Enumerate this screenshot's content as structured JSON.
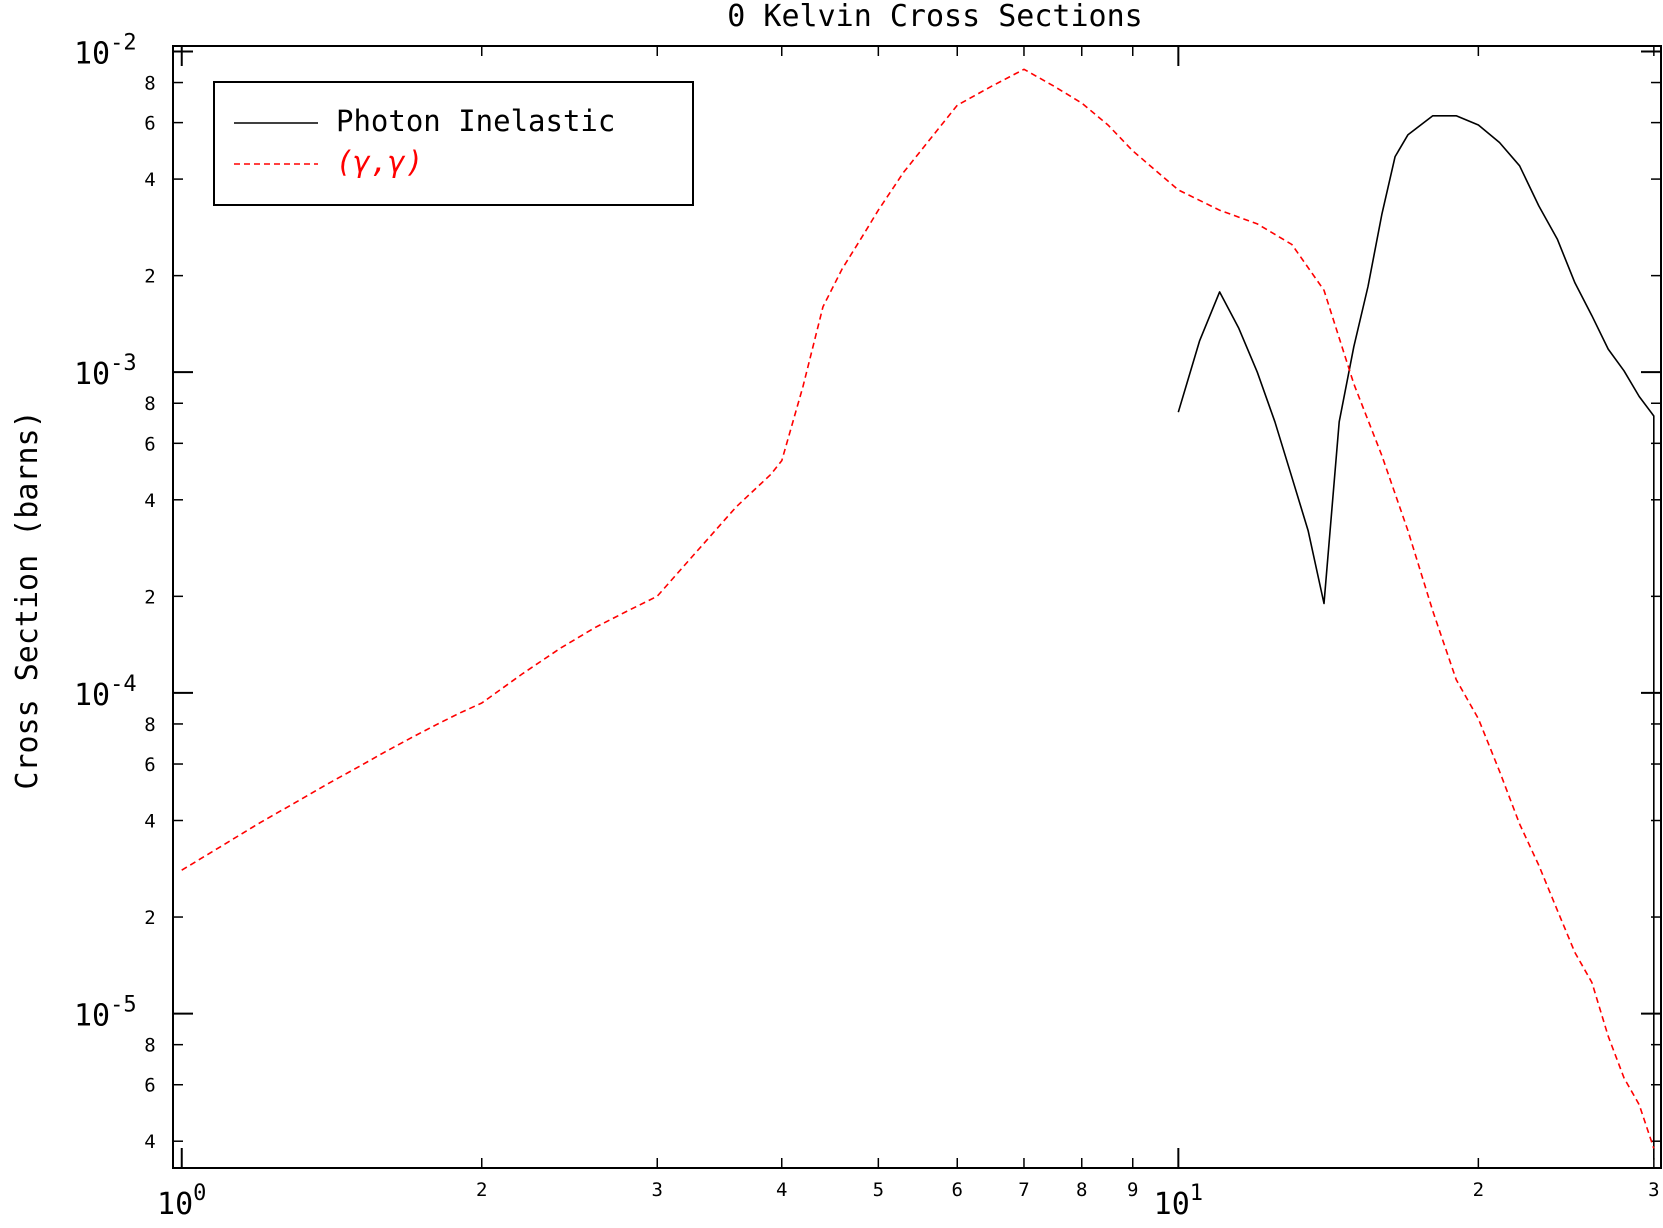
{
  "chart_data": {
    "type": "line",
    "title": "0 Kelvin Cross Sections",
    "xlabel": "",
    "ylabel": "Cross Section (barns)",
    "xscale": "log",
    "yscale": "log",
    "xlim": [
      0.98,
      30.5
    ],
    "ylim": [
      3.3e-06,
      0.0104
    ],
    "grid": false,
    "legend_position": "top-left",
    "x_major_ticks": [
      {
        "value": 1,
        "base": "10",
        "exp": "0"
      },
      {
        "value": 10,
        "base": "10",
        "exp": "1"
      }
    ],
    "x_minor_ticks": [
      {
        "value": 2,
        "label": "2"
      },
      {
        "value": 3,
        "label": "3"
      },
      {
        "value": 4,
        "label": "4"
      },
      {
        "value": 5,
        "label": "5"
      },
      {
        "value": 6,
        "label": "6"
      },
      {
        "value": 7,
        "label": "7"
      },
      {
        "value": 8,
        "label": "8"
      },
      {
        "value": 9,
        "label": "9"
      },
      {
        "value": 20,
        "label": "2"
      },
      {
        "value": 30,
        "label": "3"
      }
    ],
    "y_major_ticks": [
      {
        "value": 0.01,
        "base": "10",
        "exp": "-2"
      },
      {
        "value": 0.001,
        "base": "10",
        "exp": "-3"
      },
      {
        "value": 0.0001,
        "base": "10",
        "exp": "-4"
      },
      {
        "value": 1e-05,
        "base": "10",
        "exp": "-5"
      }
    ],
    "y_minor_ticks": [
      {
        "value": 0.008,
        "label": "8"
      },
      {
        "value": 0.006,
        "label": "6"
      },
      {
        "value": 0.004,
        "label": "4"
      },
      {
        "value": 0.002,
        "label": "2"
      },
      {
        "value": 0.0008,
        "label": "8"
      },
      {
        "value": 0.0006,
        "label": "6"
      },
      {
        "value": 0.0004,
        "label": "4"
      },
      {
        "value": 0.0002,
        "label": "2"
      },
      {
        "value": 8e-05,
        "label": "8"
      },
      {
        "value": 6e-05,
        "label": "6"
      },
      {
        "value": 4e-05,
        "label": "4"
      },
      {
        "value": 2e-05,
        "label": "2"
      },
      {
        "value": 8e-06,
        "label": "8"
      },
      {
        "value": 6e-06,
        "label": "6"
      },
      {
        "value": 4e-06,
        "label": "4"
      }
    ],
    "series": [
      {
        "name": "Photon Inelastic",
        "color": "#000000",
        "style": "solid",
        "x": [
          10.0,
          10.5,
          11.0,
          11.5,
          12.0,
          12.5,
          13.0,
          13.5,
          14.0,
          14.5,
          15.0,
          15.5,
          16.0,
          16.5,
          17.0,
          18.0,
          19.0,
          20.0,
          21.0,
          22.0,
          23.0,
          24.0,
          25.0,
          26.0,
          27.0,
          28.0,
          29.0,
          30.0,
          30.0
        ],
        "y": [
          0.00075,
          0.00125,
          0.00178,
          0.00137,
          0.001,
          0.0007,
          0.00047,
          0.00032,
          0.00019,
          0.0007,
          0.0012,
          0.00185,
          0.0031,
          0.0047,
          0.0055,
          0.0063,
          0.0063,
          0.0059,
          0.0052,
          0.0044,
          0.0033,
          0.0026,
          0.0019,
          0.0015,
          0.00118,
          0.00101,
          0.00084,
          0.00073,
          3.5e-06
        ]
      },
      {
        "name": "(γ,γ)",
        "color": "#ff0000",
        "style": "dashed",
        "x": [
          1.0,
          1.1,
          1.2,
          1.3,
          1.4,
          1.5,
          1.6,
          1.7,
          1.8,
          1.9,
          2.0,
          2.2,
          2.4,
          2.6,
          2.8,
          3.0,
          3.3,
          3.6,
          3.9,
          4.0,
          4.2,
          4.4,
          4.6,
          4.8,
          5.0,
          5.3,
          5.6,
          6.0,
          6.5,
          7.0,
          7.5,
          8.0,
          8.5,
          9.0,
          10.0,
          11.0,
          12.0,
          13.0,
          14.0,
          15.0,
          16.0,
          17.0,
          18.0,
          19.0,
          20.0,
          21.0,
          22.0,
          23.0,
          24.0,
          25.0,
          26.0,
          27.0,
          28.0,
          29.0,
          30.0
        ],
        "y": [
          2.8e-05,
          3.35e-05,
          3.95e-05,
          4.55e-05,
          5.2e-05,
          5.85e-05,
          6.55e-05,
          7.25e-05,
          7.95e-05,
          8.65e-05,
          9.3e-05,
          0.000115,
          0.000138,
          0.00016,
          0.00018,
          0.0002,
          0.00028,
          0.00038,
          0.00048,
          0.00053,
          0.0009,
          0.0016,
          0.0021,
          0.0026,
          0.0032,
          0.0042,
          0.0052,
          0.0068,
          0.0078,
          0.0088,
          0.0078,
          0.0069,
          0.0059,
          0.0049,
          0.0037,
          0.0032,
          0.0029,
          0.0025,
          0.0018,
          0.00092,
          0.00055,
          0.00032,
          0.00018,
          0.00011,
          8.3e-05,
          5.7e-05,
          3.9e-05,
          2.9e-05,
          2.1e-05,
          1.55e-05,
          1.25e-05,
          8.5e-06,
          6.3e-06,
          5.2e-06,
          3.8e-06
        ]
      }
    ]
  }
}
